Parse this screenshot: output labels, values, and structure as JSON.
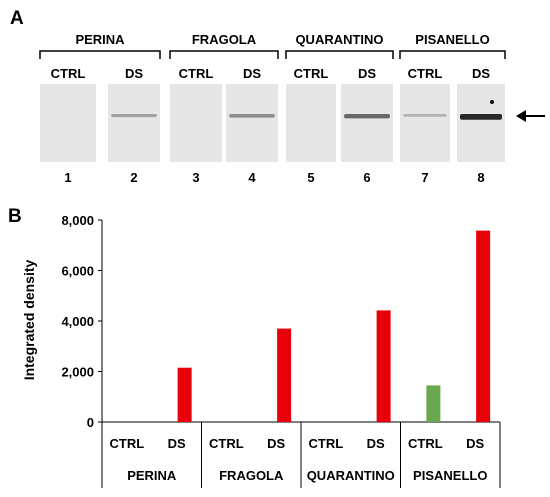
{
  "panel_a": {
    "letter": "A",
    "groups": [
      "PERINA",
      "FRAGOLA",
      "QUARANTINO",
      "PISANELLO"
    ],
    "lanes": [
      {
        "label": "CTRL",
        "number": "1",
        "band_intensity": 0.0
      },
      {
        "label": "DS",
        "number": "2",
        "band_intensity": 0.28
      },
      {
        "label": "CTRL",
        "number": "3",
        "band_intensity": 0.0
      },
      {
        "label": "DS",
        "number": "4",
        "band_intensity": 0.4
      },
      {
        "label": "CTRL",
        "number": "5",
        "band_intensity": 0.0
      },
      {
        "label": "DS",
        "number": "6",
        "band_intensity": 0.6
      },
      {
        "label": "CTRL",
        "number": "7",
        "band_intensity": 0.18
      },
      {
        "label": "DS",
        "number": "8",
        "band_intensity": 0.95
      }
    ],
    "arrow_icon": "arrow-left-icon"
  },
  "chart_data": {
    "type": "bar",
    "panel_letter": "B",
    "ylabel": "Integrated density",
    "xlabel": "",
    "ylim": [
      0,
      8000
    ],
    "yticks": [
      0,
      2000,
      4000,
      6000,
      8000
    ],
    "ytick_labels": [
      "0",
      "2,000",
      "4,000",
      "6,000",
      "8,000"
    ],
    "groups": [
      "PERINA",
      "FRAGOLA",
      "QUARANTINO",
      "PISANELLO"
    ],
    "categories": [
      "CTRL",
      "DS",
      "CTRL",
      "DS",
      "CTRL",
      "DS",
      "CTRL",
      "DS"
    ],
    "values": [
      0,
      2150,
      0,
      3700,
      0,
      4420,
      1450,
      7580
    ],
    "bar_colors": [
      "#e8000b",
      "#e8000b",
      "#e8000b",
      "#e8000b",
      "#e8000b",
      "#e8000b",
      "#6aa84f",
      "#e8000b"
    ],
    "grid": false,
    "legend": "none"
  }
}
